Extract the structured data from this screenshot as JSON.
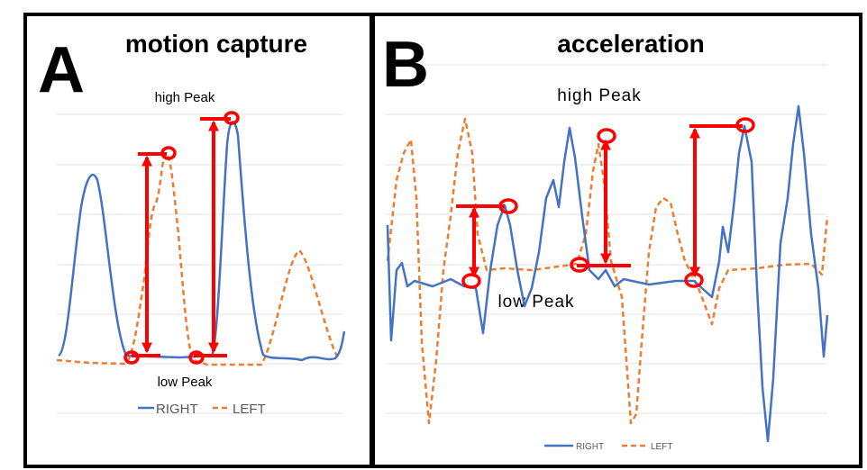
{
  "panels": [
    {
      "label": "A",
      "title": "motion capture",
      "high_note": "high Peak",
      "low_note": "low Peak",
      "legend": [
        "RIGHT",
        "LEFT"
      ]
    },
    {
      "label": "B",
      "title": "acceleration",
      "high_note": "high Peak",
      "low_note": "low Peak",
      "legend": [
        "RIGHT",
        "LEFT"
      ]
    }
  ]
}
